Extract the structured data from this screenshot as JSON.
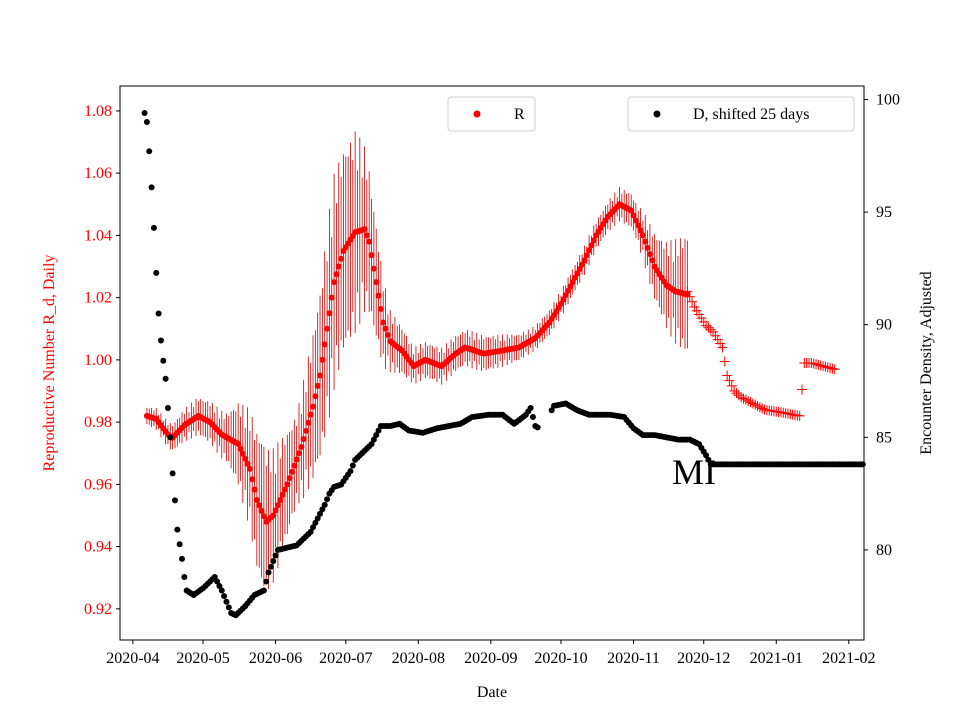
{
  "chart_data": {
    "type": "scatter",
    "title": "",
    "xlabel": "Date",
    "ylabel_left": "Reproductive Number R_d, Daily",
    "ylabel_right": "Encounter Density, Adjusted",
    "annotation": "MI",
    "x_tick_labels": [
      "2020-04",
      "2020-05",
      "2020-06",
      "2020-07",
      "2020-08",
      "2020-09",
      "2020-10",
      "2020-11",
      "2020-12",
      "2021-01",
      "2021-02"
    ],
    "y_left_ticks": [
      "0.92",
      "0.94",
      "0.96",
      "0.98",
      "1.00",
      "1.02",
      "1.04",
      "1.06",
      "1.08"
    ],
    "y_right_ticks": [
      "80",
      "85",
      "90",
      "95",
      "100"
    ],
    "ylim_left": [
      0.91,
      1.088
    ],
    "ylim_right": [
      76.0,
      100.6
    ],
    "xlim_days": [
      -5.5,
      312.5
    ],
    "colors": {
      "r_series": "#ff0000",
      "errorbar": "#c00000",
      "d_series": "#000000",
      "left_axis_text": "#ff0000"
    },
    "legend": {
      "r_label": "R",
      "d_label": "D, shifted 25 days",
      "r_position": "top-center",
      "d_position": "top-right"
    },
    "r_series": {
      "name": "R",
      "axis": "left",
      "marker": "dot",
      "knots": [
        [
          6,
          0.982
        ],
        [
          10,
          0.981
        ],
        [
          15,
          0.976
        ],
        [
          17,
          0.975
        ],
        [
          22,
          0.979
        ],
        [
          28,
          0.982
        ],
        [
          33,
          0.98
        ],
        [
          38,
          0.976
        ],
        [
          45,
          0.973
        ],
        [
          50,
          0.965
        ],
        [
          53,
          0.955
        ],
        [
          57,
          0.948
        ],
        [
          60,
          0.95
        ],
        [
          66,
          0.96
        ],
        [
          72,
          0.972
        ],
        [
          77,
          0.985
        ],
        [
          80,
          0.995
        ],
        [
          83,
          1.01
        ],
        [
          86,
          1.025
        ],
        [
          90,
          1.035
        ],
        [
          95,
          1.041
        ],
        [
          99,
          1.042
        ],
        [
          101,
          1.038
        ],
        [
          104,
          1.025
        ],
        [
          107,
          1.012
        ],
        [
          110,
          1.006
        ],
        [
          115,
          1.003
        ],
        [
          120,
          0.998
        ],
        [
          125,
          1.0
        ],
        [
          132,
          0.998
        ],
        [
          138,
          1.002
        ],
        [
          142,
          1.004
        ],
        [
          150,
          1.002
        ],
        [
          158,
          1.003
        ],
        [
          165,
          1.004
        ],
        [
          172,
          1.007
        ],
        [
          178,
          1.012
        ],
        [
          183,
          1.018
        ],
        [
          188,
          1.025
        ],
        [
          193,
          1.032
        ],
        [
          198,
          1.04
        ],
        [
          203,
          1.046
        ],
        [
          208,
          1.05
        ],
        [
          213,
          1.048
        ],
        [
          218,
          1.04
        ],
        [
          223,
          1.03
        ],
        [
          228,
          1.024
        ],
        [
          232,
          1.022
        ],
        [
          237,
          1.021
        ]
      ],
      "x_range_days": [
        6,
        237
      ],
      "errorbar_halfwidth": [
        [
          6,
          0.003
        ],
        [
          40,
          0.008
        ],
        [
          55,
          0.025
        ],
        [
          70,
          0.015
        ],
        [
          85,
          0.035
        ],
        [
          95,
          0.033
        ],
        [
          110,
          0.01
        ],
        [
          120,
          0.006
        ],
        [
          150,
          0.006
        ],
        [
          170,
          0.004
        ],
        [
          200,
          0.005
        ],
        [
          215,
          0.006
        ],
        [
          237,
          0.02
        ]
      ]
    },
    "r_extrapolated": {
      "marker": "plus",
      "axis": "left",
      "knots": [
        [
          237,
          1.022
        ],
        [
          240,
          1.017
        ],
        [
          245,
          1.011
        ],
        [
          248,
          1.009
        ],
        [
          252,
          1.004
        ],
        [
          254,
          0.995
        ],
        [
          257,
          0.99
        ],
        [
          260,
          0.988
        ],
        [
          265,
          0.986
        ],
        [
          270,
          0.984
        ],
        [
          278,
          0.983
        ],
        [
          285,
          0.982
        ],
        [
          287,
          0.999
        ],
        [
          290,
          0.999
        ],
        [
          295,
          0.998
        ],
        [
          300,
          0.997
        ]
      ],
      "x_range_days": [
        237,
        300
      ]
    },
    "d_series": {
      "name": "D, shifted 25 days",
      "axis": "right",
      "marker": "dot",
      "knots": [
        [
          5,
          99.4
        ],
        [
          6,
          99.0
        ],
        [
          7,
          97.7
        ],
        [
          8,
          96.1
        ],
        [
          9,
          94.3
        ],
        [
          10,
          92.3
        ],
        [
          11,
          90.5
        ],
        [
          12,
          89.3
        ],
        [
          13,
          88.4
        ],
        [
          14,
          87.6
        ],
        [
          16,
          85.0
        ],
        [
          17,
          83.4
        ],
        [
          18,
          82.2
        ],
        [
          19,
          80.9
        ],
        [
          21,
          79.6
        ],
        [
          22,
          78.8
        ],
        [
          23,
          78.2
        ],
        [
          26,
          78.0
        ],
        [
          30,
          78.3
        ],
        [
          35,
          78.8
        ],
        [
          38,
          78.2
        ],
        [
          42,
          77.2
        ],
        [
          44,
          77.1
        ],
        [
          48,
          77.5
        ],
        [
          52,
          78.0
        ],
        [
          56,
          78.2
        ],
        [
          58,
          79.0
        ],
        [
          60,
          79.5
        ],
        [
          62,
          80.0
        ],
        [
          66,
          80.1
        ],
        [
          70,
          80.2
        ],
        [
          76,
          80.8
        ],
        [
          82,
          82.0
        ],
        [
          84,
          82.5
        ],
        [
          86,
          82.8
        ],
        [
          89,
          82.9
        ],
        [
          93,
          83.5
        ],
        [
          95,
          84.0
        ],
        [
          98,
          84.3
        ],
        [
          102,
          84.7
        ],
        [
          106,
          85.5
        ],
        [
          110,
          85.5
        ],
        [
          114,
          85.6
        ],
        [
          118,
          85.3
        ],
        [
          124,
          85.2
        ],
        [
          130,
          85.4
        ],
        [
          140,
          85.6
        ],
        [
          145,
          85.9
        ],
        [
          152,
          86.0
        ],
        [
          158,
          86.0
        ],
        [
          163,
          85.6
        ],
        [
          168,
          86.0
        ],
        [
          170,
          86.3
        ],
        [
          172,
          85.5
        ],
        [
          177,
          85.2
        ],
        [
          179,
          86.2
        ],
        [
          180,
          86.4
        ],
        [
          185,
          86.5
        ],
        [
          190,
          86.2
        ],
        [
          195,
          86.0
        ],
        [
          200,
          86.0
        ],
        [
          204,
          86.0
        ],
        [
          210,
          85.9
        ],
        [
          214,
          85.4
        ],
        [
          218,
          85.1
        ],
        [
          223,
          85.1
        ],
        [
          228,
          85.0
        ],
        [
          233,
          84.9
        ],
        [
          238,
          84.9
        ],
        [
          242,
          84.7
        ],
        [
          245,
          84.2
        ],
        [
          247,
          83.8
        ],
        [
          252,
          83.8
        ],
        [
          312,
          83.8
        ]
      ],
      "x_range_days": [
        5,
        312
      ],
      "marker_gaps_days": [
        [
          173.5,
          175.5
        ],
        [
          175.5,
          178.5
        ]
      ]
    }
  }
}
